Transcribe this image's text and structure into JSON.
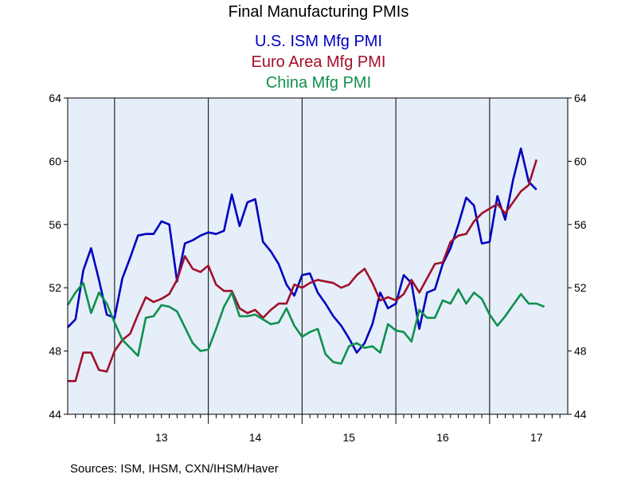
{
  "chart_data": {
    "type": "line",
    "title": "Final Manufacturing PMIs",
    "source": "Sources:  ISM, IHSM, CXN/IHSM/Haver",
    "ylim": [
      44,
      64
    ],
    "yticks": [
      44,
      48,
      52,
      56,
      60,
      64
    ],
    "xlim": [
      2012.5,
      2017.833
    ],
    "xticks": [
      {
        "label": "13",
        "x": 2013.0
      },
      {
        "label": "14",
        "x": 2014.0
      },
      {
        "label": "15",
        "x": 2015.0
      },
      {
        "label": "16",
        "x": 2016.0
      },
      {
        "label": "17",
        "x": 2017.0
      }
    ],
    "year_boundaries": [
      2013,
      2014,
      2015,
      2016,
      2017
    ],
    "x": [
      "2012-07",
      "2012-08",
      "2012-09",
      "2012-10",
      "2012-11",
      "2012-12",
      "2013-01",
      "2013-02",
      "2013-03",
      "2013-04",
      "2013-05",
      "2013-06",
      "2013-07",
      "2013-08",
      "2013-09",
      "2013-10",
      "2013-11",
      "2013-12",
      "2014-01",
      "2014-02",
      "2014-03",
      "2014-04",
      "2014-05",
      "2014-06",
      "2014-07",
      "2014-08",
      "2014-09",
      "2014-10",
      "2014-11",
      "2014-12",
      "2015-01",
      "2015-02",
      "2015-03",
      "2015-04",
      "2015-05",
      "2015-06",
      "2015-07",
      "2015-08",
      "2015-09",
      "2015-10",
      "2015-11",
      "2015-12",
      "2016-01",
      "2016-02",
      "2016-03",
      "2016-04",
      "2016-05",
      "2016-06",
      "2016-07",
      "2016-08",
      "2016-09",
      "2016-10",
      "2016-11",
      "2016-12",
      "2017-01",
      "2017-02",
      "2017-03",
      "2017-04",
      "2017-05",
      "2017-06",
      "2017-07",
      "2017-08",
      "2017-09",
      "2017-10"
    ],
    "series": [
      {
        "name": "U.S. ISM Mfg PMI",
        "color": "#0000c0",
        "values": [
          49.5,
          50.0,
          53.1,
          54.5,
          52.5,
          50.3,
          50.1,
          52.6,
          53.9,
          55.3,
          55.4,
          55.4,
          56.2,
          56.0,
          52.4,
          54.8,
          55.0,
          55.3,
          55.5,
          55.4,
          55.6,
          57.9,
          55.9,
          57.4,
          57.6,
          54.9,
          54.3,
          53.5,
          52.2,
          51.5,
          52.8,
          52.9,
          51.7,
          51.0,
          50.2,
          49.6,
          48.8,
          47.9,
          48.5,
          49.7,
          51.7,
          50.7,
          51.0,
          52.8,
          52.3,
          49.4,
          51.7,
          51.9,
          53.5,
          54.5,
          56.0,
          57.7,
          57.2,
          54.8,
          54.9,
          57.8,
          56.3,
          58.8,
          60.8,
          58.7,
          58.2,
          null,
          null,
          null
        ]
      },
      {
        "name": "Euro Area Mfg PMI",
        "color": "#a0102a",
        "values": [
          46.1,
          46.1,
          47.9,
          47.9,
          46.8,
          46.7,
          48.0,
          48.7,
          49.1,
          50.3,
          51.4,
          51.1,
          51.3,
          51.6,
          52.5,
          54.0,
          53.2,
          53.0,
          53.4,
          52.2,
          51.8,
          51.8,
          50.7,
          50.4,
          50.6,
          50.1,
          50.6,
          51.0,
          51.0,
          52.2,
          52.0,
          52.3,
          52.5,
          52.4,
          52.3,
          52.0,
          52.2,
          52.8,
          53.2,
          52.3,
          51.2,
          51.4,
          51.2,
          51.6,
          52.5,
          51.7,
          52.6,
          53.5,
          53.6,
          54.9,
          55.3,
          55.4,
          56.2,
          56.7,
          57.0,
          57.3,
          56.7,
          57.4,
          58.1,
          58.5,
          60.1,
          null,
          null,
          null
        ]
      },
      {
        "name": "China Mfg PMI",
        "color": "#10904c",
        "values": [
          50.9,
          51.7,
          52.3,
          50.4,
          51.7,
          51.0,
          49.8,
          48.7,
          48.2,
          47.7,
          50.1,
          50.2,
          50.9,
          50.8,
          50.5,
          49.5,
          48.5,
          48.0,
          48.1,
          49.4,
          50.8,
          51.7,
          50.2,
          50.2,
          50.3,
          50.0,
          49.7,
          49.8,
          50.7,
          49.6,
          48.9,
          49.2,
          49.4,
          47.8,
          47.3,
          47.2,
          48.3,
          48.5,
          48.2,
          48.3,
          47.9,
          49.7,
          49.3,
          49.2,
          48.6,
          50.6,
          50.1,
          50.1,
          51.2,
          51.0,
          51.9,
          51.0,
          51.7,
          51.3,
          50.3,
          49.6,
          50.2,
          50.9,
          51.6,
          51.0,
          51.0,
          50.8,
          null,
          null
        ]
      }
    ]
  }
}
